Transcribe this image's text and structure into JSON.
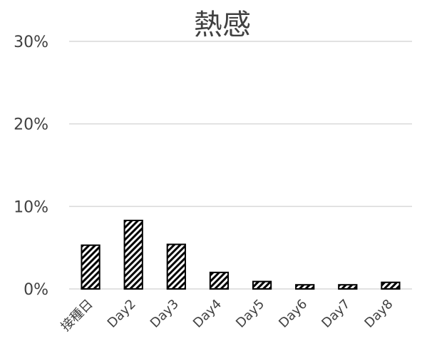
{
  "chart_data": {
    "type": "bar",
    "title": "熱感",
    "xlabel": "",
    "ylabel": "",
    "categories": [
      "接種日",
      "Day2",
      "Day3",
      "Day4",
      "Day5",
      "Day6",
      "Day7",
      "Day8"
    ],
    "values": [
      5.3,
      8.3,
      5.4,
      2.0,
      0.9,
      0.5,
      0.5,
      0.8
    ],
    "ylim": [
      0,
      30
    ],
    "yticks": [
      0,
      10,
      20,
      30
    ],
    "ytick_labels": [
      "0%",
      "10%",
      "20%",
      "30%"
    ],
    "grid": true,
    "legend": "none",
    "bar_pattern": "diagonal-hatch",
    "colors": {
      "bar_outline": "#000000",
      "grid": "#d9d9d9",
      "text": "#404040"
    }
  }
}
